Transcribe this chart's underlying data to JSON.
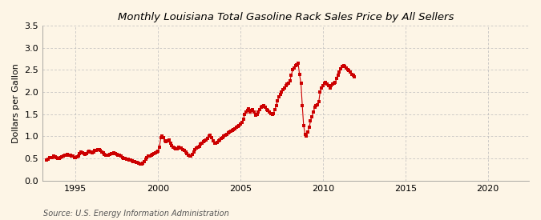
{
  "title": "Monthly Louisiana Total Gasoline Rack Sales Price by All Sellers",
  "ylabel": "Dollars per Gallon",
  "source": "Source: U.S. Energy Information Administration",
  "background_color": "#FDF5E6",
  "marker_color": "#CC0000",
  "line_color": "#CC0000",
  "xlim": [
    1993.0,
    2022.5
  ],
  "ylim": [
    0.0,
    3.5
  ],
  "yticks": [
    0.0,
    0.5,
    1.0,
    1.5,
    2.0,
    2.5,
    3.0,
    3.5
  ],
  "xticks": [
    1995,
    2000,
    2005,
    2010,
    2015,
    2020
  ],
  "data": [
    [
      1993.25,
      0.46
    ],
    [
      1993.33,
      0.49
    ],
    [
      1993.42,
      0.52
    ],
    [
      1993.5,
      0.53
    ],
    [
      1993.58,
      0.52
    ],
    [
      1993.67,
      0.55
    ],
    [
      1993.75,
      0.54
    ],
    [
      1993.83,
      0.52
    ],
    [
      1993.92,
      0.5
    ],
    [
      1994.0,
      0.51
    ],
    [
      1994.08,
      0.53
    ],
    [
      1994.17,
      0.54
    ],
    [
      1994.25,
      0.55
    ],
    [
      1994.33,
      0.57
    ],
    [
      1994.42,
      0.58
    ],
    [
      1994.5,
      0.59
    ],
    [
      1994.58,
      0.58
    ],
    [
      1994.67,
      0.57
    ],
    [
      1994.75,
      0.56
    ],
    [
      1994.83,
      0.55
    ],
    [
      1994.92,
      0.53
    ],
    [
      1995.0,
      0.52
    ],
    [
      1995.08,
      0.54
    ],
    [
      1995.17,
      0.55
    ],
    [
      1995.25,
      0.61
    ],
    [
      1995.33,
      0.64
    ],
    [
      1995.42,
      0.63
    ],
    [
      1995.5,
      0.62
    ],
    [
      1995.58,
      0.6
    ],
    [
      1995.67,
      0.62
    ],
    [
      1995.75,
      0.65
    ],
    [
      1995.83,
      0.67
    ],
    [
      1995.92,
      0.65
    ],
    [
      1996.0,
      0.63
    ],
    [
      1996.08,
      0.65
    ],
    [
      1996.17,
      0.68
    ],
    [
      1996.25,
      0.69
    ],
    [
      1996.33,
      0.7
    ],
    [
      1996.42,
      0.7
    ],
    [
      1996.5,
      0.68
    ],
    [
      1996.58,
      0.65
    ],
    [
      1996.67,
      0.63
    ],
    [
      1996.75,
      0.6
    ],
    [
      1996.83,
      0.58
    ],
    [
      1996.92,
      0.57
    ],
    [
      1997.0,
      0.58
    ],
    [
      1997.08,
      0.6
    ],
    [
      1997.17,
      0.61
    ],
    [
      1997.25,
      0.62
    ],
    [
      1997.33,
      0.63
    ],
    [
      1997.42,
      0.62
    ],
    [
      1997.5,
      0.6
    ],
    [
      1997.58,
      0.58
    ],
    [
      1997.67,
      0.57
    ],
    [
      1997.75,
      0.55
    ],
    [
      1997.83,
      0.53
    ],
    [
      1997.92,
      0.51
    ],
    [
      1998.0,
      0.5
    ],
    [
      1998.08,
      0.49
    ],
    [
      1998.17,
      0.48
    ],
    [
      1998.25,
      0.47
    ],
    [
      1998.33,
      0.46
    ],
    [
      1998.42,
      0.45
    ],
    [
      1998.5,
      0.44
    ],
    [
      1998.58,
      0.43
    ],
    [
      1998.67,
      0.42
    ],
    [
      1998.75,
      0.41
    ],
    [
      1998.83,
      0.4
    ],
    [
      1998.92,
      0.38
    ],
    [
      1999.0,
      0.37
    ],
    [
      1999.08,
      0.4
    ],
    [
      1999.17,
      0.43
    ],
    [
      1999.25,
      0.48
    ],
    [
      1999.33,
      0.52
    ],
    [
      1999.42,
      0.55
    ],
    [
      1999.5,
      0.56
    ],
    [
      1999.58,
      0.58
    ],
    [
      1999.67,
      0.6
    ],
    [
      1999.75,
      0.62
    ],
    [
      1999.83,
      0.63
    ],
    [
      1999.92,
      0.65
    ],
    [
      2000.0,
      0.67
    ],
    [
      2000.08,
      0.75
    ],
    [
      2000.17,
      0.97
    ],
    [
      2000.25,
      1.0
    ],
    [
      2000.33,
      0.97
    ],
    [
      2000.42,
      0.9
    ],
    [
      2000.5,
      0.88
    ],
    [
      2000.58,
      0.9
    ],
    [
      2000.67,
      0.92
    ],
    [
      2000.75,
      0.85
    ],
    [
      2000.83,
      0.8
    ],
    [
      2000.92,
      0.76
    ],
    [
      2001.0,
      0.73
    ],
    [
      2001.08,
      0.72
    ],
    [
      2001.17,
      0.72
    ],
    [
      2001.25,
      0.75
    ],
    [
      2001.33,
      0.74
    ],
    [
      2001.42,
      0.73
    ],
    [
      2001.5,
      0.71
    ],
    [
      2001.58,
      0.68
    ],
    [
      2001.67,
      0.65
    ],
    [
      2001.75,
      0.62
    ],
    [
      2001.83,
      0.57
    ],
    [
      2001.92,
      0.55
    ],
    [
      2002.0,
      0.55
    ],
    [
      2002.08,
      0.6
    ],
    [
      2002.17,
      0.65
    ],
    [
      2002.25,
      0.7
    ],
    [
      2002.33,
      0.73
    ],
    [
      2002.42,
      0.75
    ],
    [
      2002.5,
      0.78
    ],
    [
      2002.58,
      0.82
    ],
    [
      2002.67,
      0.85
    ],
    [
      2002.75,
      0.88
    ],
    [
      2002.83,
      0.9
    ],
    [
      2002.92,
      0.92
    ],
    [
      2003.0,
      0.95
    ],
    [
      2003.08,
      1.0
    ],
    [
      2003.17,
      1.02
    ],
    [
      2003.25,
      0.98
    ],
    [
      2003.33,
      0.9
    ],
    [
      2003.42,
      0.85
    ],
    [
      2003.5,
      0.85
    ],
    [
      2003.58,
      0.87
    ],
    [
      2003.67,
      0.9
    ],
    [
      2003.75,
      0.92
    ],
    [
      2003.83,
      0.95
    ],
    [
      2003.92,
      0.97
    ],
    [
      2004.0,
      1.0
    ],
    [
      2004.08,
      1.03
    ],
    [
      2004.17,
      1.05
    ],
    [
      2004.25,
      1.08
    ],
    [
      2004.33,
      1.1
    ],
    [
      2004.42,
      1.12
    ],
    [
      2004.5,
      1.14
    ],
    [
      2004.58,
      1.16
    ],
    [
      2004.67,
      1.18
    ],
    [
      2004.75,
      1.2
    ],
    [
      2004.83,
      1.22
    ],
    [
      2004.92,
      1.25
    ],
    [
      2005.0,
      1.28
    ],
    [
      2005.08,
      1.32
    ],
    [
      2005.17,
      1.38
    ],
    [
      2005.25,
      1.5
    ],
    [
      2005.33,
      1.55
    ],
    [
      2005.42,
      1.58
    ],
    [
      2005.5,
      1.62
    ],
    [
      2005.58,
      1.55
    ],
    [
      2005.67,
      1.58
    ],
    [
      2005.75,
      1.6
    ],
    [
      2005.83,
      1.55
    ],
    [
      2005.92,
      1.48
    ],
    [
      2006.0,
      1.5
    ],
    [
      2006.08,
      1.55
    ],
    [
      2006.17,
      1.6
    ],
    [
      2006.25,
      1.65
    ],
    [
      2006.33,
      1.68
    ],
    [
      2006.42,
      1.7
    ],
    [
      2006.5,
      1.65
    ],
    [
      2006.58,
      1.6
    ],
    [
      2006.67,
      1.58
    ],
    [
      2006.75,
      1.55
    ],
    [
      2006.83,
      1.52
    ],
    [
      2006.92,
      1.5
    ],
    [
      2007.0,
      1.52
    ],
    [
      2007.08,
      1.6
    ],
    [
      2007.17,
      1.7
    ],
    [
      2007.25,
      1.8
    ],
    [
      2007.33,
      1.9
    ],
    [
      2007.42,
      1.95
    ],
    [
      2007.5,
      2.0
    ],
    [
      2007.58,
      2.05
    ],
    [
      2007.67,
      2.1
    ],
    [
      2007.75,
      2.15
    ],
    [
      2007.83,
      2.18
    ],
    [
      2007.92,
      2.2
    ],
    [
      2008.0,
      2.25
    ],
    [
      2008.08,
      2.38
    ],
    [
      2008.17,
      2.5
    ],
    [
      2008.25,
      2.55
    ],
    [
      2008.33,
      2.6
    ],
    [
      2008.42,
      2.62
    ],
    [
      2008.5,
      2.65
    ],
    [
      2008.58,
      2.4
    ],
    [
      2008.67,
      2.2
    ],
    [
      2008.75,
      1.7
    ],
    [
      2008.83,
      1.25
    ],
    [
      2008.92,
      1.05
    ],
    [
      2009.0,
      1.0
    ],
    [
      2009.08,
      1.1
    ],
    [
      2009.17,
      1.2
    ],
    [
      2009.25,
      1.35
    ],
    [
      2009.33,
      1.45
    ],
    [
      2009.42,
      1.55
    ],
    [
      2009.5,
      1.65
    ],
    [
      2009.58,
      1.7
    ],
    [
      2009.67,
      1.72
    ],
    [
      2009.75,
      1.78
    ],
    [
      2009.83,
      2.0
    ],
    [
      2009.92,
      2.1
    ],
    [
      2010.0,
      2.15
    ],
    [
      2010.08,
      2.2
    ],
    [
      2010.17,
      2.22
    ],
    [
      2010.25,
      2.18
    ],
    [
      2010.33,
      2.15
    ],
    [
      2010.42,
      2.1
    ],
    [
      2010.5,
      2.15
    ],
    [
      2010.58,
      2.18
    ],
    [
      2010.67,
      2.2
    ],
    [
      2010.75,
      2.22
    ],
    [
      2010.83,
      2.3
    ],
    [
      2010.92,
      2.38
    ],
    [
      2011.0,
      2.45
    ],
    [
      2011.08,
      2.52
    ],
    [
      2011.17,
      2.58
    ],
    [
      2011.25,
      2.6
    ],
    [
      2011.33,
      2.58
    ],
    [
      2011.42,
      2.55
    ],
    [
      2011.5,
      2.5
    ],
    [
      2011.58,
      2.48
    ],
    [
      2011.67,
      2.45
    ],
    [
      2011.75,
      2.4
    ],
    [
      2011.83,
      2.38
    ],
    [
      2011.92,
      2.35
    ]
  ]
}
